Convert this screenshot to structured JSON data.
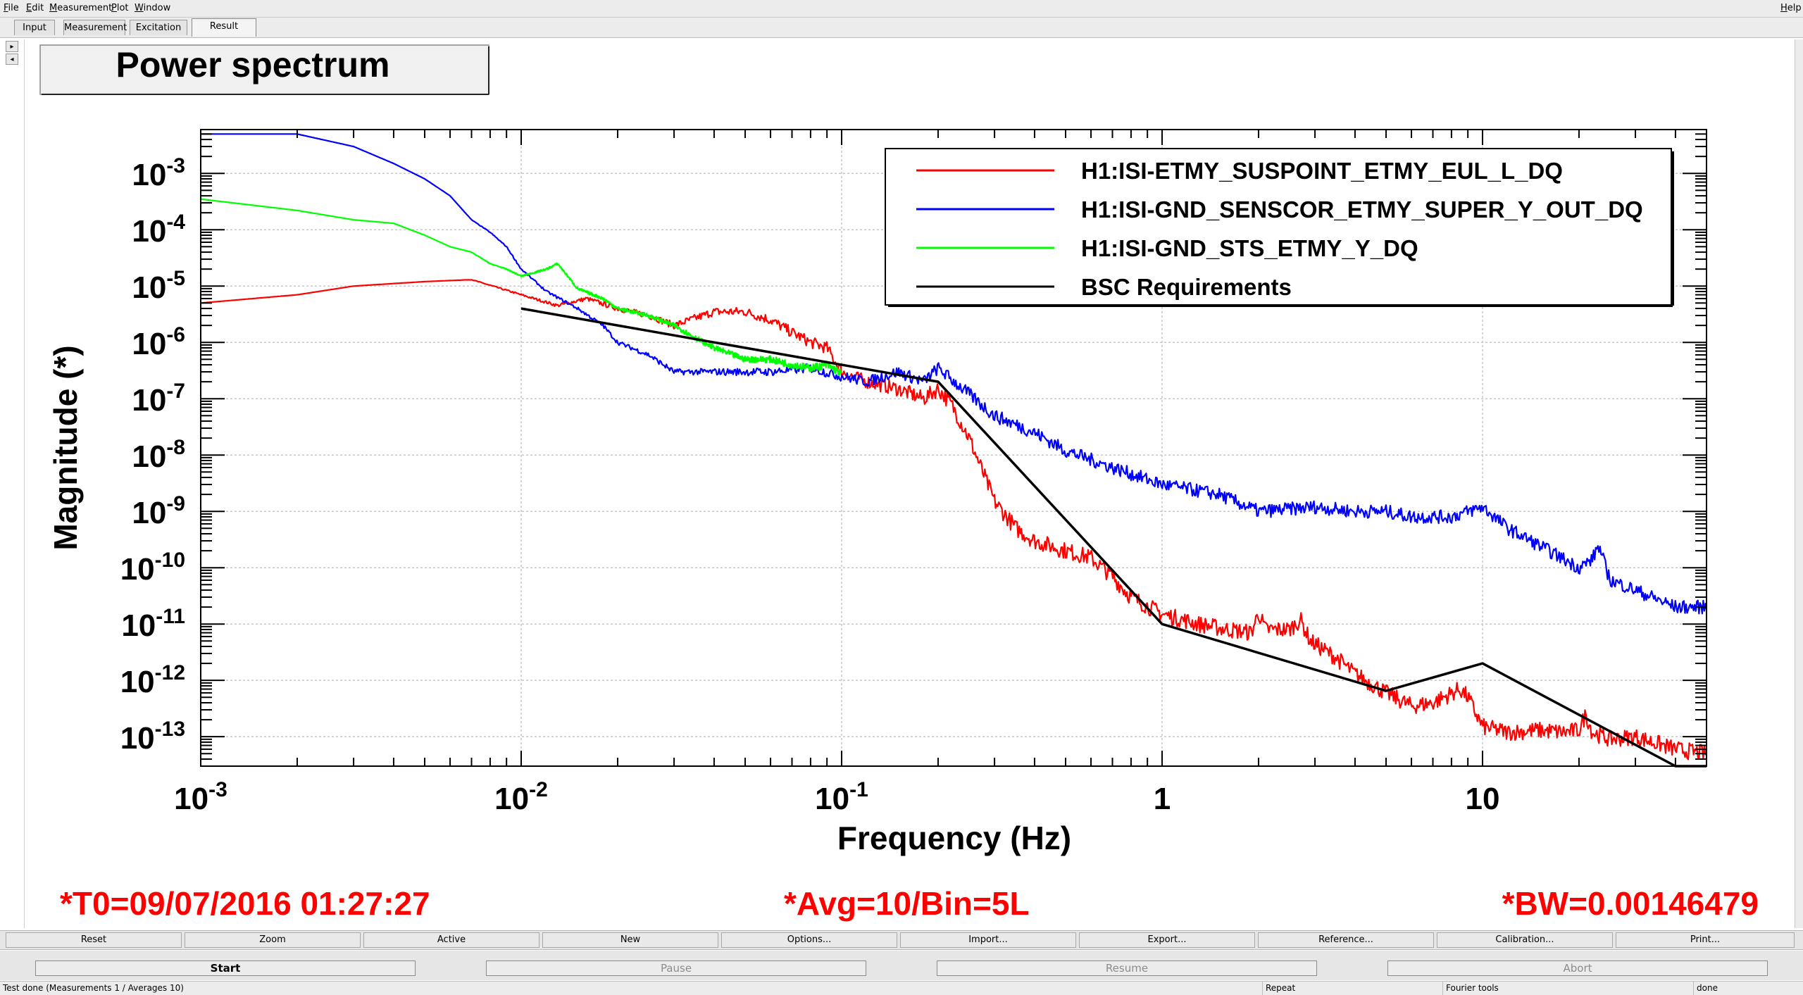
{
  "menu": {
    "items": [
      "File",
      "Edit",
      "Measurement",
      "Plot",
      "Window"
    ],
    "help": "Help"
  },
  "tabs": [
    "Input",
    "Measurement",
    "Excitation",
    "Result"
  ],
  "active_tab": "Result",
  "plot_title": "Power spectrum",
  "chart_data": {
    "type": "line",
    "title": "Power spectrum",
    "xlabel": "Frequency (Hz)",
    "ylabel": "Magnitude (*)",
    "xscale": "log",
    "yscale": "log",
    "xlim": [
      0.001,
      50
    ],
    "ylim": [
      3e-14,
      0.006
    ],
    "grid": true,
    "legend_position": "top-right",
    "x_ticks": [
      {
        "value": 0.001,
        "base": "10",
        "exp": "-3"
      },
      {
        "value": 0.01,
        "base": "10",
        "exp": "-2"
      },
      {
        "value": 0.1,
        "base": "10",
        "exp": "-1"
      },
      {
        "value": 1,
        "base": "1",
        "exp": ""
      },
      {
        "value": 10,
        "base": "10",
        "exp": ""
      }
    ],
    "y_ticks": [
      {
        "value": 0.001,
        "base": "10",
        "exp": "-3"
      },
      {
        "value": 0.0001,
        "base": "10",
        "exp": "-4"
      },
      {
        "value": 1e-05,
        "base": "10",
        "exp": "-5"
      },
      {
        "value": 1e-06,
        "base": "10",
        "exp": "-6"
      },
      {
        "value": 1e-07,
        "base": "10",
        "exp": "-7"
      },
      {
        "value": 1e-08,
        "base": "10",
        "exp": "-8"
      },
      {
        "value": 1e-09,
        "base": "10",
        "exp": "-9"
      },
      {
        "value": 1e-10,
        "base": "10",
        "exp": "-10"
      },
      {
        "value": 1e-11,
        "base": "10",
        "exp": "-11"
      },
      {
        "value": 1e-12,
        "base": "10",
        "exp": "-12"
      },
      {
        "value": 1e-13,
        "base": "10",
        "exp": "-13"
      }
    ],
    "series": [
      {
        "name": "H1:ISI-ETMY_SUSPOINT_ETMY_EUL_L_DQ",
        "color": "#ff0000",
        "noise": 0.15,
        "x": [
          0.001,
          0.002,
          0.003,
          0.005,
          0.007,
          0.01,
          0.013,
          0.016,
          0.02,
          0.025,
          0.03,
          0.04,
          0.05,
          0.06,
          0.07,
          0.08,
          0.09,
          0.1,
          0.12,
          0.15,
          0.18,
          0.2,
          0.22,
          0.25,
          0.3,
          0.35,
          0.4,
          0.5,
          0.6,
          0.7,
          0.8,
          1.0,
          1.3,
          1.6,
          1.9,
          2.0,
          2.1,
          2.5,
          2.7,
          2.9,
          3.5,
          4.0,
          5.0,
          6.0,
          7.0,
          8.5,
          9.0,
          10.0,
          12.0,
          15.0,
          18.0,
          20.0,
          21.0,
          22.0,
          25.0,
          30.0,
          40.0,
          50.0
        ],
        "y": [
          5e-06,
          7e-06,
          1e-05,
          1.2e-05,
          1.3e-05,
          7e-06,
          4.5e-06,
          6e-06,
          4e-06,
          3e-06,
          2e-06,
          3.5e-06,
          3.5e-06,
          2.5e-06,
          1.5e-06,
          1e-06,
          8e-07,
          3e-07,
          2e-07,
          1.5e-07,
          1e-07,
          1.5e-07,
          8e-08,
          2e-08,
          1.5e-09,
          5e-10,
          3e-10,
          2e-10,
          1.5e-10,
          7e-11,
          3e-11,
          1.5e-11,
          1e-11,
          8e-12,
          7e-12,
          1.6e-11,
          8e-12,
          8e-12,
          1.2e-11,
          5e-12,
          2.5e-12,
          1.3e-12,
          6e-13,
          3.5e-13,
          4e-13,
          7e-13,
          5e-13,
          1.5e-13,
          1.2e-13,
          1.3e-13,
          1.2e-13,
          1.3e-13,
          2.5e-13,
          1.2e-13,
          9e-14,
          1e-13,
          6e-14,
          5e-14
        ]
      },
      {
        "name": "H1:ISI-GND_SENSCOR_ETMY_SUPER_Y_OUT_DQ",
        "color": "#0000ff",
        "noise": 0.12,
        "x": [
          0.001,
          0.002,
          0.003,
          0.004,
          0.005,
          0.006,
          0.007,
          0.008,
          0.009,
          0.01,
          0.012,
          0.015,
          0.018,
          0.02,
          0.025,
          0.03,
          0.04,
          0.05,
          0.06,
          0.08,
          0.1,
          0.12,
          0.15,
          0.18,
          0.2,
          0.25,
          0.3,
          0.4,
          0.5,
          0.7,
          1.0,
          1.5,
          2.0,
          2.5,
          3.0,
          4.0,
          5.0,
          6.0,
          8.0,
          10.0,
          12.0,
          15.0,
          18.0,
          20.0,
          22.0,
          23.0,
          25.0,
          30.0,
          40.0,
          50.0
        ],
        "y": [
          0.005,
          0.005,
          0.003,
          0.0015,
          0.0008,
          0.0004,
          0.00015,
          9e-05,
          5e-05,
          2e-05,
          8e-06,
          4e-06,
          2e-06,
          1e-06,
          6e-07,
          3e-07,
          3e-07,
          3e-07,
          3e-07,
          3.5e-07,
          2.5e-07,
          2e-07,
          3e-07,
          2e-07,
          3.5e-07,
          1.2e-07,
          5e-08,
          2.5e-08,
          1.2e-08,
          6e-09,
          3e-09,
          2e-09,
          1e-09,
          1.1e-09,
          1.2e-09,
          1e-09,
          1e-09,
          8e-10,
          8e-10,
          1.2e-09,
          5e-10,
          2.5e-10,
          1.4e-10,
          1e-10,
          1.4e-10,
          2.5e-10,
          6e-11,
          4e-11,
          2e-11,
          2e-11
        ]
      },
      {
        "name": "H1:ISI-GND_STS_ETMY_Y_DQ",
        "color": "#00ff00",
        "noise": 0.1,
        "x": [
          0.001,
          0.002,
          0.003,
          0.004,
          0.005,
          0.006,
          0.007,
          0.008,
          0.009,
          0.01,
          0.012,
          0.013,
          0.015,
          0.018,
          0.02,
          0.025,
          0.03,
          0.035,
          0.04,
          0.05,
          0.06,
          0.07,
          0.08,
          0.09,
          0.1
        ],
        "y": [
          0.00035,
          0.00022,
          0.00015,
          0.00013,
          8e-05,
          5e-05,
          4e-05,
          2.5e-05,
          2e-05,
          1.5e-05,
          2e-05,
          2.5e-05,
          9e-06,
          6e-06,
          4e-06,
          3e-06,
          2e-06,
          1.2e-06,
          8e-07,
          5e-07,
          5e-07,
          4e-07,
          3.5e-07,
          4e-07,
          2.8e-07
        ]
      },
      {
        "name": "BSC Requirements",
        "color": "#000000",
        "noise": 0,
        "x": [
          0.01,
          0.2,
          1.0,
          5.0,
          10.0,
          40.0,
          50.0
        ],
        "y": [
          4e-06,
          2e-07,
          1e-11,
          6.5e-13,
          2e-12,
          3e-14,
          3e-14
        ]
      }
    ]
  },
  "annotations": {
    "t0": "*T0=09/07/2016 01:27:27",
    "avg": "*Avg=10/Bin=5L",
    "bw": "*BW=0.00146479"
  },
  "toolbar": [
    "Reset",
    "Zoom",
    "Active",
    "New",
    "Options...",
    "Import...",
    "Export...",
    "Reference...",
    "Calibration...",
    "Print..."
  ],
  "controls": {
    "start": "Start",
    "pause": "Pause",
    "resume": "Resume",
    "abort": "Abort"
  },
  "status": {
    "message": "Test done (Measurements 1 / Averages 10)",
    "repeat": "Repeat",
    "tool": "Fourier tools",
    "state": "done"
  },
  "colors": {
    "annotation": "#ff0000",
    "grid": "#c8c8c8"
  }
}
